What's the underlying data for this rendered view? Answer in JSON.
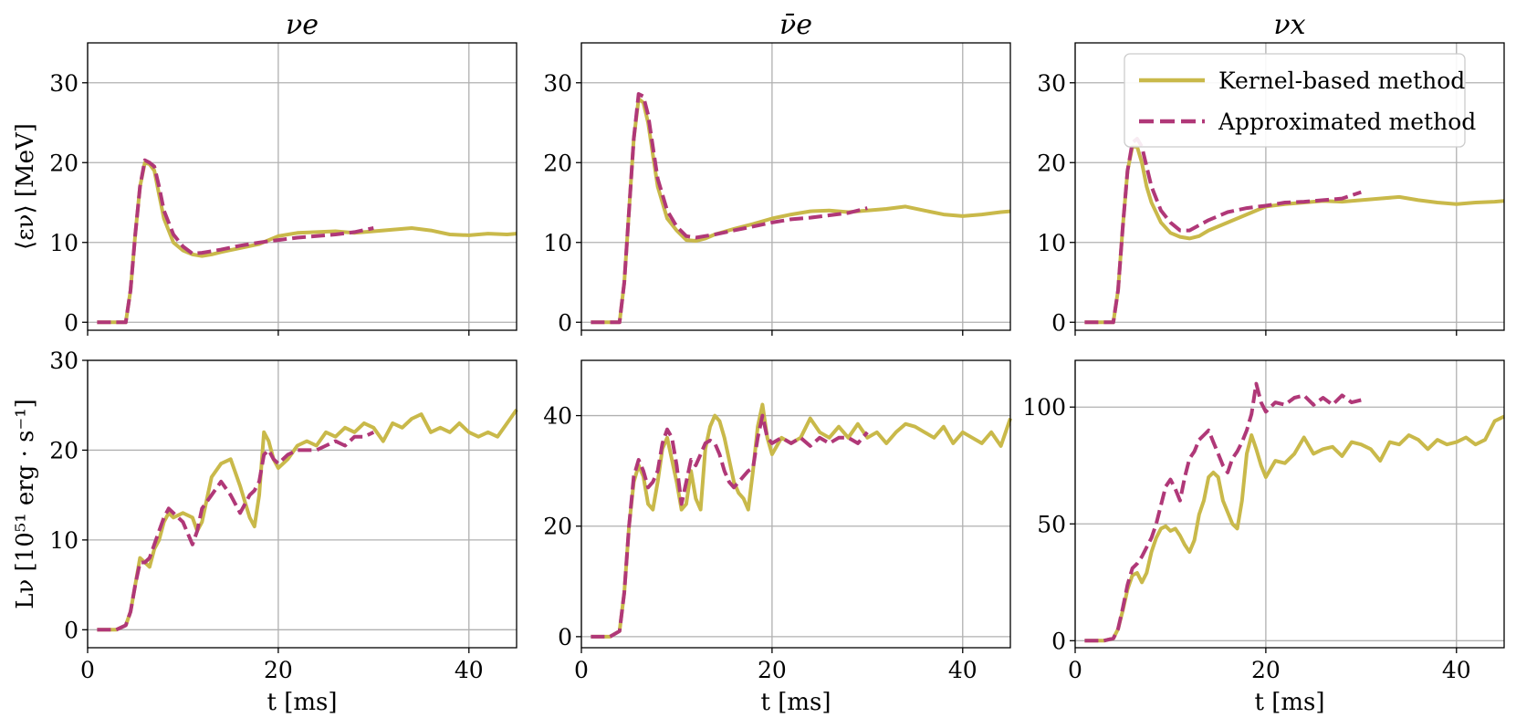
{
  "colors": {
    "kernel": "#c9b94a",
    "approx": "#b03878"
  },
  "chart_data": [
    {
      "type": "line",
      "title": "νe",
      "xlabel": "",
      "ylabel": "⟨εν⟩ [MeV]",
      "xlim": [
        0,
        45
      ],
      "ylim": [
        -1,
        35
      ],
      "xticks": [
        0,
        20,
        40
      ],
      "yticks": [
        0,
        10,
        20,
        30
      ],
      "show_xticklabels": false,
      "grid": true,
      "series": [
        {
          "name": "Kernel-based method",
          "style": "solid",
          "x": [
            1,
            3,
            4,
            4.5,
            5,
            5.5,
            6,
            6.5,
            7,
            7.5,
            8,
            9,
            10,
            11,
            12,
            13,
            14,
            16,
            18,
            20,
            22,
            24,
            26,
            28,
            30,
            32,
            34,
            36,
            38,
            40,
            42,
            44,
            45
          ],
          "y": [
            0,
            0,
            0,
            4,
            11,
            17,
            20,
            19.8,
            19,
            16,
            13,
            10,
            9,
            8.5,
            8.3,
            8.5,
            8.8,
            9.3,
            9.8,
            10.8,
            11.2,
            11.3,
            11.4,
            11.2,
            11.4,
            11.6,
            11.8,
            11.5,
            11,
            10.9,
            11.1,
            11,
            11.1
          ]
        },
        {
          "name": "Approximated method",
          "style": "dashed",
          "x": [
            1,
            3,
            4,
            4.5,
            5,
            5.5,
            6,
            6.5,
            7,
            7.5,
            8,
            9,
            10,
            11,
            12,
            14,
            16,
            18,
            20,
            22,
            24,
            26,
            28,
            30
          ],
          "y": [
            0,
            0,
            0,
            4,
            11,
            17,
            20.3,
            20,
            19.5,
            17,
            14,
            11,
            9.5,
            8.6,
            8.7,
            9.1,
            9.6,
            10,
            10.3,
            10.6,
            10.8,
            11,
            11.3,
            11.8
          ]
        }
      ]
    },
    {
      "type": "line",
      "title": "ν̄e",
      "xlabel": "",
      "ylabel": "",
      "xlim": [
        0,
        45
      ],
      "ylim": [
        -1,
        35
      ],
      "xticks": [
        0,
        20,
        40
      ],
      "yticks": [
        0,
        10,
        20,
        30
      ],
      "show_xticklabels": false,
      "grid": true,
      "series": [
        {
          "name": "Kernel-based method",
          "style": "solid",
          "x": [
            1,
            3,
            4,
            4.5,
            5,
            5.5,
            6,
            6.5,
            7,
            7.5,
            8,
            9,
            10,
            11,
            12,
            13,
            14,
            16,
            18,
            20,
            22,
            24,
            26,
            28,
            30,
            32,
            34,
            36,
            38,
            40,
            42,
            44,
            45
          ],
          "y": [
            0,
            0,
            0,
            5,
            14,
            23,
            28,
            27.5,
            25,
            21,
            17,
            13,
            11.5,
            10.3,
            10.2,
            10.5,
            11,
            11.7,
            12.3,
            13,
            13.5,
            13.9,
            14,
            13.8,
            14,
            14.2,
            14.5,
            14,
            13.5,
            13.3,
            13.5,
            13.8,
            13.9
          ]
        },
        {
          "name": "Approximated method",
          "style": "dashed",
          "x": [
            1,
            3,
            4,
            4.5,
            5,
            5.5,
            6,
            6.5,
            7,
            7.5,
            8,
            9,
            10,
            11,
            12,
            14,
            16,
            18,
            20,
            22,
            24,
            26,
            28,
            30
          ],
          "y": [
            0,
            0,
            0,
            5,
            14,
            23,
            28.6,
            28.3,
            26,
            22,
            18,
            14,
            12,
            10.8,
            10.6,
            11,
            11.5,
            12,
            12.5,
            12.9,
            13.1,
            13.4,
            13.7,
            14.3
          ]
        }
      ]
    },
    {
      "type": "line",
      "title": "νx",
      "xlabel": "",
      "ylabel": "",
      "xlim": [
        0,
        45
      ],
      "ylim": [
        -1,
        35
      ],
      "xticks": [
        0,
        20,
        40
      ],
      "yticks": [
        0,
        10,
        20,
        30
      ],
      "show_xticklabels": false,
      "grid": true,
      "legend_position": "top-right",
      "series": [
        {
          "name": "Kernel-based method",
          "style": "solid",
          "x": [
            1,
            3,
            4,
            4.5,
            5,
            5.5,
            6,
            6.5,
            7,
            7.5,
            8,
            9,
            10,
            11,
            12,
            13,
            14,
            16,
            18,
            20,
            22,
            24,
            26,
            28,
            30,
            32,
            34,
            36,
            38,
            40,
            42,
            44,
            45
          ],
          "y": [
            0,
            0,
            0,
            4,
            12,
            19,
            22,
            22,
            20,
            17,
            15,
            12.5,
            11.2,
            10.7,
            10.5,
            10.8,
            11.5,
            12.5,
            13.5,
            14.5,
            14.8,
            15,
            15.2,
            15.1,
            15.3,
            15.5,
            15.7,
            15.3,
            15,
            14.8,
            15,
            15.1,
            15.2
          ]
        },
        {
          "name": "Approximated method",
          "style": "dashed",
          "x": [
            1,
            3,
            4,
            4.5,
            5,
            5.5,
            6,
            6.5,
            7,
            7.5,
            8,
            9,
            10,
            11,
            12,
            14,
            16,
            18,
            20,
            22,
            24,
            26,
            28,
            30
          ],
          "y": [
            0,
            0,
            0,
            4,
            12,
            19,
            22.5,
            23,
            22,
            19.5,
            17,
            14,
            12.5,
            11.5,
            11.5,
            12.8,
            13.8,
            14.3,
            14.6,
            15,
            15.1,
            15.3,
            15.5,
            16.3
          ]
        }
      ]
    },
    {
      "type": "line",
      "title": "",
      "xlabel": "t [ms]",
      "ylabel": "Lν [10⁵¹ erg · s⁻¹]",
      "xlim": [
        0,
        45
      ],
      "ylim": [
        -2,
        30
      ],
      "xticks": [
        0,
        20,
        40
      ],
      "yticks": [
        0,
        10,
        20,
        30
      ],
      "show_xticklabels": true,
      "grid": true,
      "series": [
        {
          "name": "Kernel-based method",
          "style": "solid",
          "x": [
            1,
            3,
            4,
            4.5,
            5,
            5.5,
            6,
            6.5,
            7,
            7.5,
            8,
            8.5,
            9,
            10,
            11,
            11.5,
            12,
            13,
            14,
            15,
            16,
            17,
            17.5,
            18,
            18.5,
            19,
            19.5,
            20,
            21,
            22,
            23,
            24,
            25,
            26,
            27,
            28,
            29,
            30,
            31,
            32,
            33,
            34,
            35,
            36,
            37,
            38,
            39,
            40,
            41,
            42,
            43,
            44,
            45
          ],
          "y": [
            0,
            0,
            0.5,
            2,
            5,
            8,
            7.5,
            7,
            9,
            10,
            12,
            13,
            12.5,
            13,
            12.5,
            11,
            12,
            17,
            18.5,
            19,
            16,
            12.5,
            11.5,
            15,
            22,
            21,
            19,
            18,
            19,
            20.5,
            21,
            20.5,
            22,
            21.5,
            22.5,
            22,
            23,
            22.5,
            21,
            23,
            22.5,
            23.5,
            24,
            22,
            22.5,
            22,
            23,
            22,
            21.5,
            22,
            21.5,
            23,
            24.5
          ]
        },
        {
          "name": "Approximated method",
          "style": "dashed",
          "x": [
            1,
            3,
            4,
            4.5,
            5,
            5.5,
            6,
            6.5,
            7,
            7.5,
            8,
            8.5,
            9,
            10,
            11,
            11.5,
            12,
            13,
            14,
            15,
            16,
            17,
            17.5,
            18,
            18.5,
            19,
            19.5,
            20,
            21,
            22,
            23,
            24,
            25,
            26,
            27,
            28,
            29,
            30
          ],
          "y": [
            0,
            0,
            0.5,
            2,
            5,
            7.5,
            7.5,
            8,
            9.5,
            11,
            12.5,
            13.5,
            13,
            12,
            9.5,
            11,
            13.5,
            15,
            16.5,
            15,
            13,
            15,
            15.5,
            16.5,
            19.5,
            20,
            19,
            18.5,
            19.5,
            20,
            20,
            20,
            20.5,
            21,
            20.5,
            21.5,
            21.5,
            22
          ]
        }
      ]
    },
    {
      "type": "line",
      "title": "",
      "xlabel": "t [ms]",
      "ylabel": "",
      "xlim": [
        0,
        45
      ],
      "ylim": [
        -2,
        50
      ],
      "xticks": [
        0,
        20,
        40
      ],
      "yticks": [
        0,
        20,
        40
      ],
      "show_xticklabels": true,
      "grid": true,
      "series": [
        {
          "name": "Kernel-based method",
          "style": "solid",
          "x": [
            1,
            3,
            4,
            4.5,
            5,
            5.5,
            6,
            6.5,
            7,
            7.5,
            8,
            8.5,
            9,
            9.5,
            10,
            10.5,
            11,
            11.5,
            12,
            12.5,
            13,
            13.5,
            14,
            14.5,
            15,
            15.5,
            16,
            16.5,
            17,
            17.5,
            18,
            18.5,
            19,
            19.5,
            20,
            21,
            22,
            23,
            24,
            25,
            26,
            27,
            28,
            29,
            30,
            31,
            32,
            33,
            34,
            35,
            36,
            37,
            38,
            39,
            40,
            41,
            42,
            43,
            44,
            45
          ],
          "y": [
            0,
            0,
            1,
            8,
            20,
            28,
            31,
            29,
            24,
            23,
            28,
            34,
            36,
            32,
            28,
            23,
            24,
            30,
            25,
            23,
            34,
            38,
            40,
            39,
            36,
            32,
            28,
            26,
            25,
            23,
            30,
            38,
            42,
            36,
            33,
            36,
            35,
            36,
            39.5,
            37,
            36,
            38,
            36,
            38.5,
            36,
            37,
            35,
            37,
            38.5,
            38,
            37,
            36,
            38,
            35,
            37,
            36,
            35,
            37,
            34.5,
            39.5
          ]
        },
        {
          "name": "Approximated method",
          "style": "dashed",
          "x": [
            1,
            3,
            4,
            4.5,
            5,
            5.5,
            6,
            6.5,
            7,
            7.5,
            8,
            8.5,
            9,
            9.5,
            10,
            10.5,
            11,
            11.5,
            12,
            12.5,
            13,
            13.5,
            14,
            14.5,
            15,
            15.5,
            16,
            16.5,
            17,
            17.5,
            18,
            18.5,
            19,
            19.5,
            20,
            21,
            22,
            23,
            24,
            25,
            26,
            27,
            28,
            29,
            30
          ],
          "y": [
            0,
            0,
            1,
            8,
            20,
            29,
            32,
            30,
            27,
            28,
            30,
            35,
            37.5,
            36,
            31,
            24,
            28,
            32,
            31,
            33,
            35,
            35.5,
            35,
            33,
            30,
            28,
            27,
            28,
            29,
            30,
            30.5,
            36,
            40,
            36,
            35,
            36,
            35,
            36,
            34.5,
            36,
            35,
            36,
            36,
            35,
            37
          ]
        }
      ]
    },
    {
      "type": "line",
      "title": "",
      "xlabel": "t [ms]",
      "ylabel": "",
      "xlim": [
        0,
        45
      ],
      "ylim": [
        -3,
        120
      ],
      "xticks": [
        0,
        20,
        40
      ],
      "yticks": [
        0,
        50,
        100
      ],
      "show_xticklabels": true,
      "grid": true,
      "series": [
        {
          "name": "Kernel-based method",
          "style": "solid",
          "x": [
            1,
            3,
            4,
            4.5,
            5,
            5.5,
            6,
            6.5,
            7,
            7.5,
            8,
            8.5,
            9,
            9.5,
            10,
            10.5,
            11,
            11.5,
            12,
            12.5,
            13,
            13.5,
            14,
            14.5,
            15,
            15.5,
            16,
            16.5,
            17,
            17.5,
            18,
            18.5,
            19,
            19.5,
            20,
            21,
            22,
            23,
            24,
            25,
            26,
            27,
            28,
            29,
            30,
            31,
            32,
            33,
            34,
            35,
            36,
            37,
            38,
            39,
            40,
            41,
            42,
            43,
            44,
            45
          ],
          "y": [
            0,
            0,
            1,
            5,
            13,
            22,
            28,
            29,
            25,
            29,
            38,
            44,
            48,
            49,
            47,
            48,
            45,
            41,
            38,
            43,
            54,
            60,
            70,
            72,
            70,
            60,
            55,
            50,
            48,
            60,
            80,
            88,
            82,
            75,
            70,
            77,
            76,
            80,
            87,
            80,
            82,
            83,
            79,
            85,
            84,
            82,
            77,
            85,
            84,
            88,
            86,
            82,
            86,
            84,
            85,
            87,
            84,
            86,
            94,
            96
          ]
        },
        {
          "name": "Approximated method",
          "style": "dashed",
          "x": [
            1,
            3,
            4,
            4.5,
            5,
            5.5,
            6,
            6.5,
            7,
            7.5,
            8,
            8.5,
            9,
            9.5,
            10,
            10.5,
            11,
            11.5,
            12,
            12.5,
            13,
            13.5,
            14,
            14.5,
            15,
            15.5,
            16,
            16.5,
            17,
            17.5,
            18,
            18.5,
            19,
            19.5,
            20,
            21,
            22,
            23,
            24,
            25,
            26,
            27,
            28,
            29,
            30
          ],
          "y": [
            0,
            0,
            1,
            5,
            14,
            24,
            31,
            33,
            36,
            40,
            44,
            50,
            58,
            66,
            69,
            65,
            60,
            70,
            78,
            81,
            86,
            88,
            90,
            85,
            80,
            75,
            72,
            78,
            81,
            85,
            90,
            97,
            110,
            102,
            98,
            102,
            101,
            104,
            105,
            101,
            104,
            101,
            105,
            102,
            103
          ]
        }
      ]
    }
  ],
  "legend": {
    "entries": [
      "Kernel-based method",
      "Approximated method"
    ]
  }
}
